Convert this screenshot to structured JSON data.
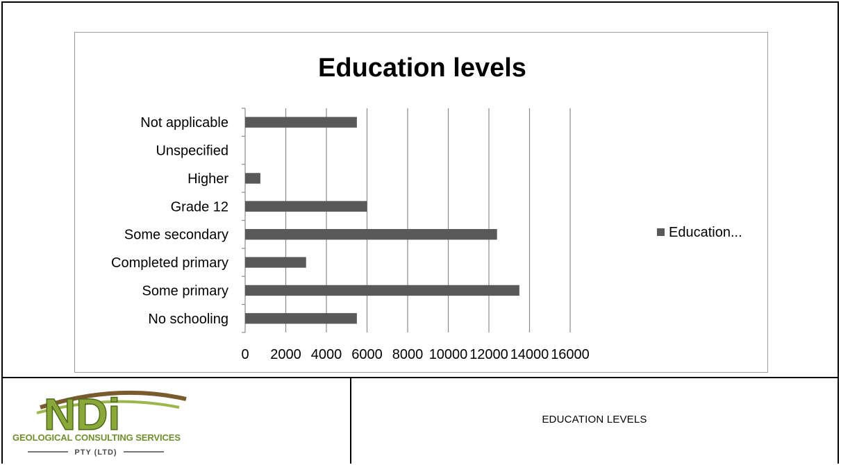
{
  "chart_data": {
    "type": "bar",
    "orientation": "horizontal",
    "title": "Education levels",
    "categories": [
      "No schooling",
      "Some primary",
      "Completed primary",
      "Some secondary",
      "Grade 12",
      "Higher",
      "Unspecified",
      "Not applicable"
    ],
    "series": [
      {
        "name": "Education...",
        "values": [
          5500,
          13500,
          3000,
          12400,
          6000,
          750,
          0,
          5500
        ]
      }
    ],
    "xlim": [
      0,
      16000
    ],
    "xticks": [
      0,
      2000,
      4000,
      6000,
      8000,
      10000,
      12000,
      14000,
      16000
    ],
    "grid": true,
    "legend": "right",
    "bar_color": "#595959"
  },
  "logo": {
    "mark": "NDi",
    "line1": "GEOLOGICAL CONSULTING SERVICES",
    "line2": "PTY (LTD)"
  },
  "caption": "EDUCATION LEVELS"
}
